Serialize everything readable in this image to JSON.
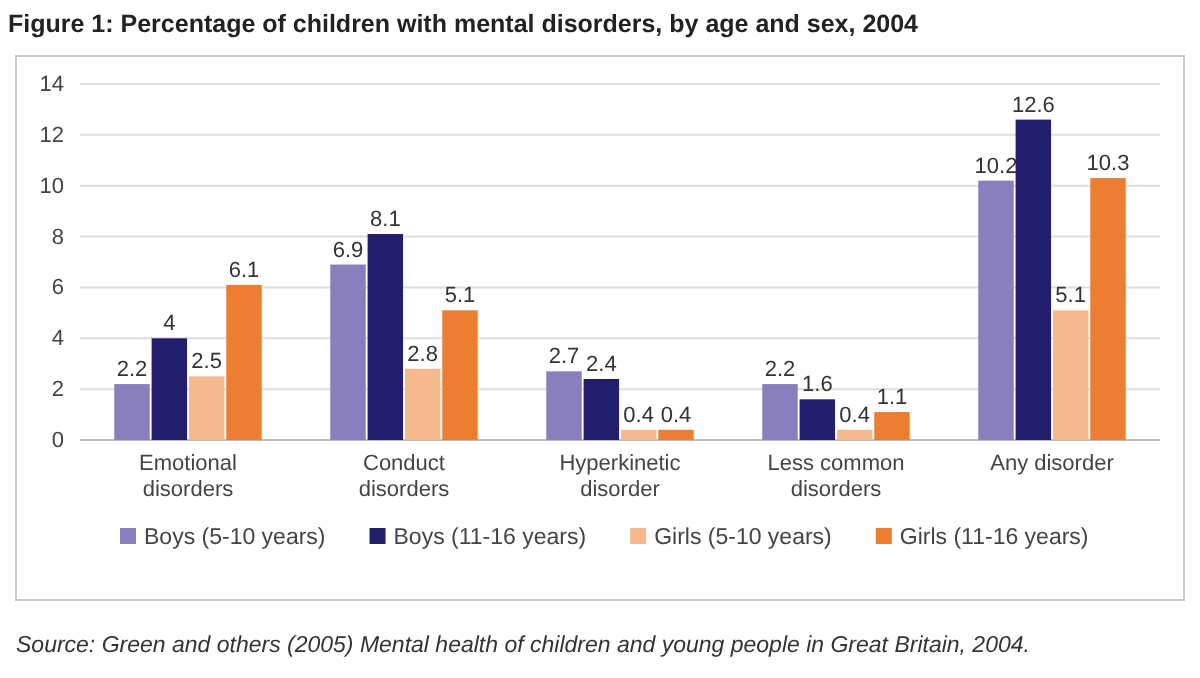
{
  "chart_data": {
    "type": "bar",
    "title": "Figure 1: Percentage of children with mental disorders, by age and sex, 2004",
    "categories": [
      "Emotional disorders",
      "Conduct disorders",
      "Hyperkinetic disorder",
      "Less common disorders",
      "Any disorder"
    ],
    "series": [
      {
        "name": "Boys (5-10 years)",
        "color": "#8a7fbd",
        "values": [
          2.2,
          6.9,
          2.7,
          2.2,
          10.2
        ]
      },
      {
        "name": "Boys (11-16 years)",
        "color": "#231d6e",
        "values": [
          4,
          8.1,
          2.4,
          1.6,
          12.6
        ]
      },
      {
        "name": "Girls (5-10 years)",
        "color": "#f5b98e",
        "values": [
          2.5,
          2.8,
          0.4,
          0.4,
          5.1
        ]
      },
      {
        "name": "Girls (11-16 years)",
        "color": "#ed7d31",
        "values": [
          6.1,
          5.1,
          0.4,
          1.1,
          10.3
        ]
      }
    ],
    "ylim": [
      0,
      14
    ],
    "yticks": [
      0,
      2,
      4,
      6,
      8,
      10,
      12,
      14
    ],
    "grid": "y",
    "legend": "bottom",
    "data_labels": true,
    "annotations": [
      "Source: Green and others (2005) Mental health of children and young people in Great Britain, 2004."
    ]
  }
}
